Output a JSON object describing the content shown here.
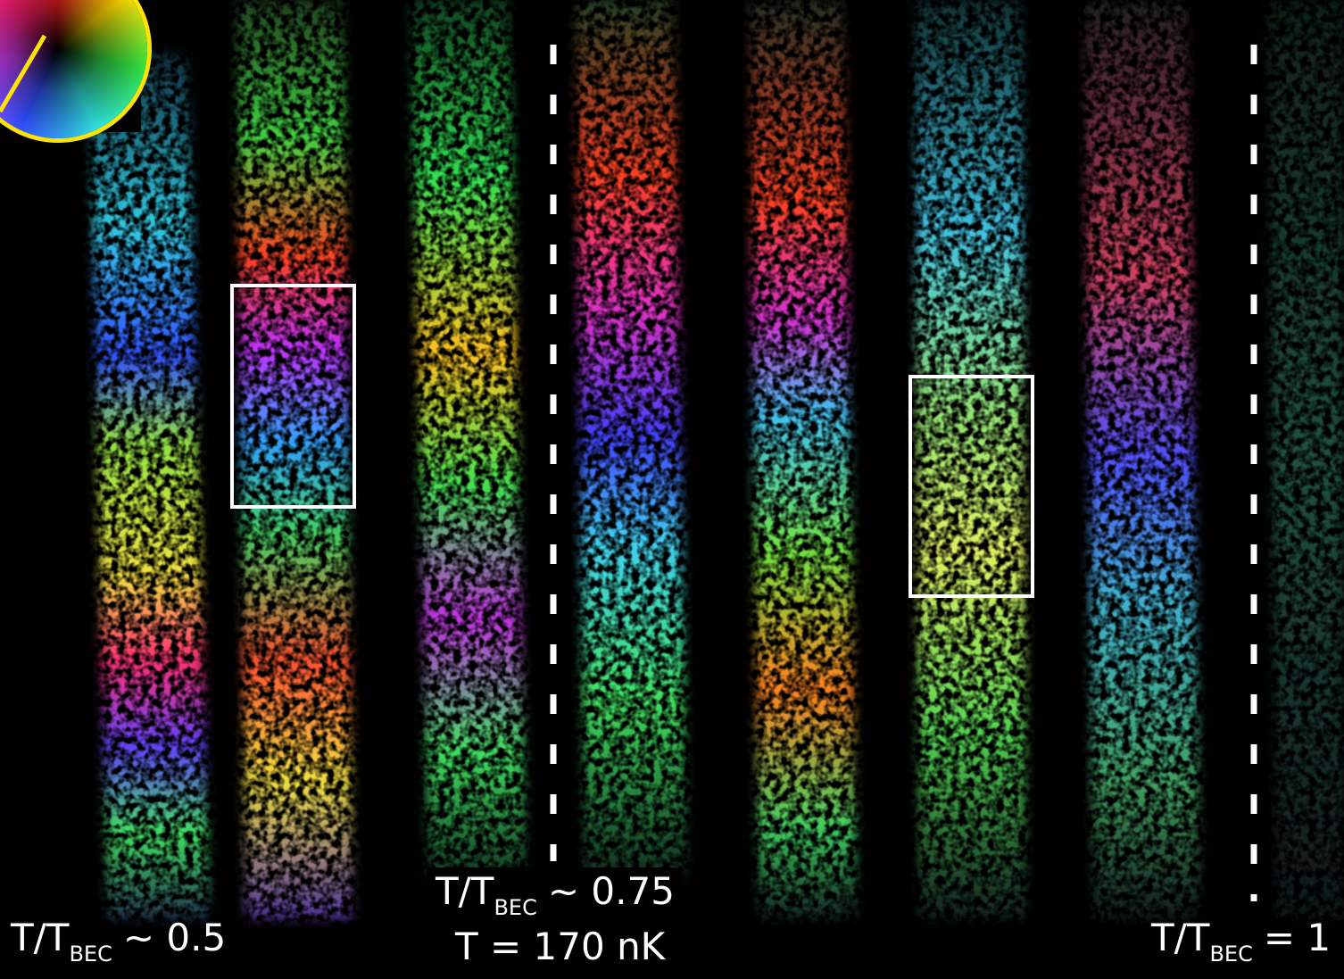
{
  "labels": [
    {
      "main": "T/T",
      "sub": "BEC",
      "suffix": "~ 0.5"
    },
    {
      "main": "T/T",
      "sub": "BEC",
      "suffix": "~ 0.75"
    },
    {
      "main": "T/T",
      "sub": "BEC",
      "suffix": "= 1"
    }
  ],
  "temperature": "T = 170 nK"
}
